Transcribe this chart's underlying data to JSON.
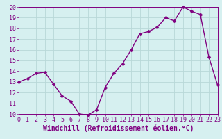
{
  "x": [
    0,
    1,
    2,
    3,
    4,
    5,
    6,
    7,
    8,
    9,
    10,
    11,
    12,
    13,
    14,
    15,
    16,
    17,
    18,
    19,
    20,
    21,
    22,
    23
  ],
  "y": [
    13.0,
    13.3,
    13.8,
    13.9,
    12.8,
    11.7,
    11.2,
    10.0,
    9.9,
    10.4,
    12.5,
    13.8,
    14.7,
    16.0,
    17.5,
    17.7,
    18.1,
    19.0,
    18.7,
    20.0,
    19.6,
    19.3,
    15.3,
    12.7
  ],
  "ylim": [
    10,
    20
  ],
  "xlim": [
    0,
    23
  ],
  "yticks": [
    10,
    11,
    12,
    13,
    14,
    15,
    16,
    17,
    18,
    19,
    20
  ],
  "xticks": [
    0,
    1,
    2,
    3,
    4,
    5,
    6,
    7,
    8,
    9,
    10,
    11,
    12,
    13,
    14,
    15,
    16,
    17,
    18,
    19,
    20,
    21,
    22,
    23
  ],
  "line_color": "#800080",
  "marker": "D",
  "marker_size": 2.5,
  "bg_color": "#d6f0f0",
  "grid_color": "#b8d8d8",
  "xlabel": "Windchill (Refroidissement éolien,°C)",
  "xlabel_color": "#800080",
  "tick_color": "#800080",
  "spine_color": "#800080",
  "label_fontsize": 7,
  "tick_fontsize": 6
}
